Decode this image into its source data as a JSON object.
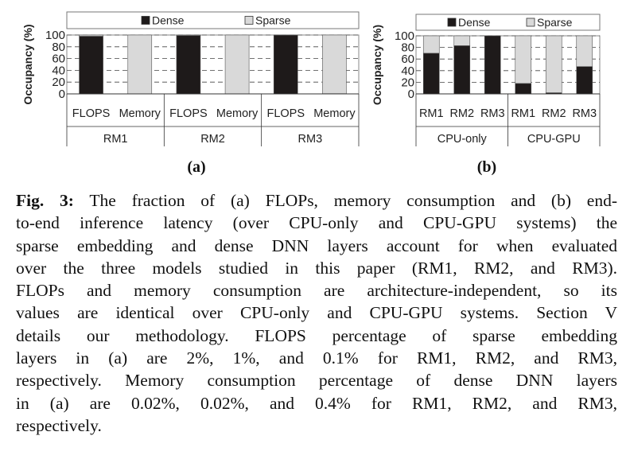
{
  "chart_data": [
    {
      "type": "bar",
      "stacked": true,
      "panel_label": "(a)",
      "ylabel": "Occupancy (%)",
      "ylim": [
        0,
        100
      ],
      "yticks": [
        0,
        20,
        40,
        60,
        80,
        100
      ],
      "grid": "dashed horizontal",
      "legend": {
        "placement": "top",
        "entries": [
          "Dense",
          "Sparse"
        ]
      },
      "groups": [
        "RM1",
        "RM2",
        "RM3"
      ],
      "categories": [
        "FLOPS",
        "Memory",
        "FLOPS",
        "Memory",
        "FLOPS",
        "Memory"
      ],
      "series": [
        {
          "name": "Dense",
          "color": "#1e1a1a",
          "values": [
            98,
            0.02,
            99,
            0.02,
            99.9,
            0.4
          ]
        },
        {
          "name": "Sparse",
          "color": "#d9d9d9",
          "values": [
            2,
            99.98,
            1,
            99.98,
            0.1,
            99.6
          ]
        }
      ]
    },
    {
      "type": "bar",
      "stacked": true,
      "panel_label": "(b)",
      "ylabel": "Occupancy (%)",
      "ylim": [
        0,
        100
      ],
      "yticks": [
        0,
        20,
        40,
        60,
        80,
        100
      ],
      "grid": "dashed horizontal",
      "legend": {
        "placement": "top",
        "entries": [
          "Dense",
          "Sparse"
        ]
      },
      "groups": [
        "CPU-only",
        "CPU-GPU"
      ],
      "categories": [
        "RM1",
        "RM2",
        "RM3",
        "RM1",
        "RM2",
        "RM3"
      ],
      "series": [
        {
          "name": "Dense",
          "color": "#1e1a1a",
          "values": [
            70,
            83,
            100,
            18,
            2,
            47
          ]
        },
        {
          "name": "Sparse",
          "color": "#d9d9d9",
          "values": [
            30,
            17,
            0,
            82,
            98,
            53
          ]
        }
      ]
    }
  ],
  "caption": {
    "label": "Fig. 3:",
    "lines": [
      " The fraction of (a) FLOPs, memory consumption and (b) end-",
      "to-end inference latency (over CPU-only and CPU-GPU systems) the",
      "sparse embedding and dense DNN layers account for when evaluated",
      "over the three models studied in this paper (RM1, RM2, and RM3).",
      "FLOPs and memory consumption are architecture-independent, so its",
      "values are identical over CPU-only and CPU-GPU systems. Section V",
      "details our methodology. FLOPS percentage of sparse embedding",
      "layers in (a) are 2%, 1%, and 0.1% for RM1, RM2, and RM3,",
      "respectively. Memory consumption percentage of dense DNN layers",
      "in (a) are 0.02%, 0.02%, and 0.4% for RM1, RM2, and RM3,",
      "respectively."
    ]
  }
}
